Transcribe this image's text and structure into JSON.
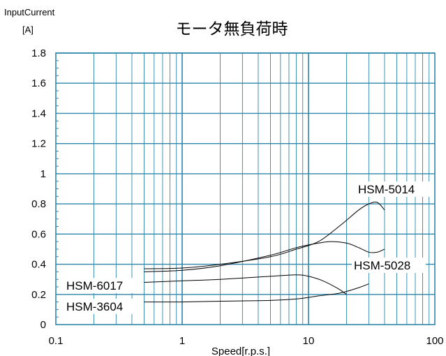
{
  "chart_data": {
    "type": "line",
    "title": "モータ無負荷時",
    "ylabel": "InputCurrent",
    "yunit": "[A]",
    "xlabel": "Speed[r.p.s.]",
    "x_scale": "log",
    "xlim": [
      0.1,
      100
    ],
    "ylim": [
      0,
      1.8
    ],
    "grid": true,
    "x_ticks": [
      "0.1",
      "1",
      "10",
      "100"
    ],
    "y_ticks": [
      "0",
      "0.2",
      "0.4",
      "0.6",
      "0.8",
      "1",
      "1.2",
      "1.4",
      "1.6",
      "1.8"
    ],
    "colors": {
      "grid": "#2e86ab",
      "line": "#000000"
    },
    "series": [
      {
        "name": "HSM-5014",
        "x": [
          0.5,
          1,
          2,
          5,
          8,
          12,
          18,
          25,
          30,
          35,
          40
        ],
        "y": [
          0.37,
          0.375,
          0.4,
          0.45,
          0.5,
          0.55,
          0.66,
          0.76,
          0.8,
          0.81,
          0.76
        ]
      },
      {
        "name": "HSM-5028",
        "x": [
          0.5,
          1,
          2,
          5,
          8,
          12,
          15,
          20,
          25,
          30,
          35,
          40
        ],
        "y": [
          0.35,
          0.36,
          0.39,
          0.46,
          0.51,
          0.54,
          0.55,
          0.54,
          0.51,
          0.48,
          0.48,
          0.5
        ]
      },
      {
        "name": "HSM-6017",
        "x": [
          0.5,
          1,
          2,
          5,
          8,
          10,
          13,
          17,
          20
        ],
        "y": [
          0.28,
          0.29,
          0.3,
          0.32,
          0.33,
          0.32,
          0.29,
          0.24,
          0.2
        ]
      },
      {
        "name": "HSM-3604",
        "x": [
          0.5,
          1,
          2,
          5,
          8,
          12,
          18,
          25,
          30
        ],
        "y": [
          0.15,
          0.15,
          0.155,
          0.16,
          0.17,
          0.19,
          0.21,
          0.245,
          0.27
        ]
      }
    ]
  }
}
